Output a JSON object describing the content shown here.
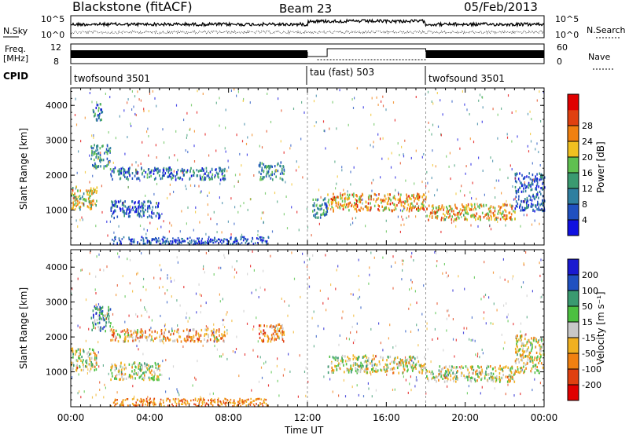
{
  "header": {
    "station": "Blackstone (fitACF)",
    "beam": "Beam 23",
    "date": "05/Feb/2013"
  },
  "panels": {
    "nsky_label": "N.Sky",
    "nsky_ticks": [
      "10^5",
      "10^0"
    ],
    "nsearch_label": "N.Search",
    "nsearch_ticks": [
      "10^5",
      "10^0"
    ],
    "freq_label": "Freq.",
    "freq_unit": "[MHz]",
    "freq_ticks": [
      "12",
      "8"
    ],
    "nave_label": "Nave",
    "nave_ticks": [
      "60",
      "0"
    ],
    "cpid_label": "CPID",
    "cpid_segments": [
      {
        "label": "twofsound 3501",
        "start": 0,
        "end": 12
      },
      {
        "label": "tau (fast) 503",
        "start": 12,
        "end": 18
      },
      {
        "label": "twofsound 3501",
        "start": 18,
        "end": 24
      }
    ]
  },
  "colors": {
    "power": [
      "#1010e0",
      "#2050c0",
      "#2f7fa0",
      "#3a9a70",
      "#5fc050",
      "#f0c020",
      "#f08010",
      "#e04010",
      "#e00000"
    ],
    "velocity": [
      "#1a1ad0",
      "#2050c0",
      "#3a9a70",
      "#4cc040",
      "#c8c8c8",
      "#f0b020",
      "#f08010",
      "#e04010",
      "#e00000"
    ],
    "ground_scatter": "#c8c8c8"
  },
  "chart_data": [
    {
      "type": "heatmap",
      "title": "",
      "xlabel": "",
      "ylabel": "Slant Range [km]",
      "xlim": [
        0,
        24
      ],
      "ylim": [
        0,
        4500
      ],
      "x_ticks": [
        0,
        4,
        8,
        12,
        16,
        20,
        24
      ],
      "y_ticks": [
        1000,
        2000,
        3000,
        4000
      ],
      "colorbar": {
        "label": "Power [dB]",
        "range": [
          0,
          32
        ],
        "ticks": [
          "4",
          "8",
          "12",
          "16",
          "20",
          "24",
          "28"
        ]
      },
      "scatter_regions": [
        {
          "t0": 0.0,
          "t1": 1.3,
          "r0": 1050,
          "r1": 1700,
          "level": 0.55
        },
        {
          "t0": 1.0,
          "t1": 2.0,
          "r0": 2200,
          "r1": 2900,
          "level": 0.35
        },
        {
          "t0": 1.1,
          "t1": 1.6,
          "r0": 3600,
          "r1": 4100,
          "level": 0.3
        },
        {
          "t0": 2.0,
          "t1": 7.8,
          "r0": 1900,
          "r1": 2250,
          "level": 0.25
        },
        {
          "t0": 2.0,
          "t1": 4.5,
          "r0": 800,
          "r1": 1300,
          "level": 0.15
        },
        {
          "t0": 9.5,
          "t1": 10.8,
          "r0": 1900,
          "r1": 2400,
          "level": 0.35
        },
        {
          "t0": 12.2,
          "t1": 13.0,
          "r0": 800,
          "r1": 1400,
          "level": 0.3
        },
        {
          "t0": 13.0,
          "t1": 18.0,
          "r0": 1000,
          "r1": 1500,
          "level": 0.7
        },
        {
          "t0": 18.0,
          "t1": 22.5,
          "r0": 750,
          "r1": 1200,
          "level": 0.65
        },
        {
          "t0": 22.5,
          "t1": 24.0,
          "r0": 1000,
          "r1": 2100,
          "level": 0.2
        }
      ]
    },
    {
      "type": "heatmap",
      "title": "",
      "xlabel": "Time UT",
      "ylabel": "Slant Range [km]",
      "xlim": [
        0,
        24
      ],
      "ylim": [
        0,
        4500
      ],
      "x_ticks": [
        0,
        4,
        8,
        12,
        16,
        20,
        24
      ],
      "x_tick_labels": [
        "00:00",
        "04:00",
        "08:00",
        "12:00",
        "16:00",
        "20:00",
        "00:00"
      ],
      "y_ticks": [
        1000,
        2000,
        3000,
        4000
      ],
      "colorbar": {
        "label": "Velocity [m s⁻¹]",
        "ticks": [
          "200",
          "100",
          "50",
          "15",
          "-15",
          "-50",
          "-100",
          "-200"
        ]
      },
      "scatter_regions": [
        {
          "t0": 0.0,
          "t1": 1.3,
          "r0": 1050,
          "r1": 1700,
          "level": 0.5
        },
        {
          "t0": 1.0,
          "t1": 2.0,
          "r0": 2200,
          "r1": 2900,
          "level": 0.3
        },
        {
          "t0": 2.0,
          "t1": 7.8,
          "r0": 1900,
          "r1": 2250,
          "level": 0.65
        },
        {
          "t0": 2.0,
          "t1": 4.5,
          "r0": 800,
          "r1": 1300,
          "level": 0.5
        },
        {
          "t0": 9.5,
          "t1": 10.8,
          "r0": 1900,
          "r1": 2400,
          "level": 0.7
        },
        {
          "t0": 13.0,
          "t1": 18.0,
          "r0": 1000,
          "r1": 1500,
          "level": 0.5
        },
        {
          "t0": 18.0,
          "t1": 22.5,
          "r0": 750,
          "r1": 1200,
          "level": 0.5
        },
        {
          "t0": 22.5,
          "t1": 24.0,
          "r0": 1000,
          "r1": 2100,
          "level": 0.55
        }
      ]
    }
  ]
}
